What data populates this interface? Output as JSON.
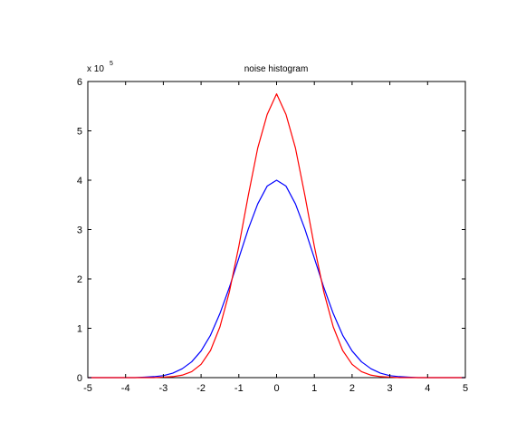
{
  "chart_data": {
    "type": "line",
    "title": "noise histogram",
    "xlabel": "",
    "ylabel": "",
    "y_scale_multiplier": "x 10",
    "y_scale_exponent": "5",
    "xlim": [
      -5,
      5
    ],
    "ylim": [
      0,
      6
    ],
    "xticks": [
      -5,
      -4,
      -3,
      -2,
      -1,
      0,
      1,
      2,
      3,
      4,
      5
    ],
    "yticks": [
      0,
      1,
      2,
      3,
      4,
      5,
      6
    ],
    "xtick_labels": [
      "-5",
      "-4",
      "-3",
      "-2",
      "-1",
      "0",
      "1",
      "2",
      "3",
      "4",
      "5"
    ],
    "ytick_labels": [
      "0",
      "1",
      "2",
      "3",
      "4",
      "5",
      "6"
    ],
    "grid": false,
    "legend": "none",
    "series": [
      {
        "color": "#0000ff",
        "x": [
          -5.0,
          -4.75,
          -4.5,
          -4.25,
          -4.0,
          -3.75,
          -3.5,
          -3.25,
          -3.0,
          -2.75,
          -2.5,
          -2.25,
          -2.0,
          -1.75,
          -1.5,
          -1.25,
          -1.0,
          -0.75,
          -0.5,
          -0.25,
          0.0,
          0.25,
          0.5,
          0.75,
          1.0,
          1.25,
          1.5,
          1.75,
          2.0,
          2.25,
          2.5,
          2.75,
          3.0,
          3.25,
          3.5,
          3.75,
          4.0,
          4.25,
          4.5,
          4.75,
          5.0
        ],
        "y": [
          0.0,
          0.0,
          0.0,
          0.0,
          0.0,
          0.0,
          0.01,
          0.02,
          0.04,
          0.09,
          0.18,
          0.32,
          0.54,
          0.86,
          1.3,
          1.83,
          2.42,
          3.01,
          3.52,
          3.88,
          4.0,
          3.88,
          3.52,
          3.01,
          2.42,
          1.83,
          1.3,
          0.86,
          0.54,
          0.32,
          0.18,
          0.09,
          0.04,
          0.02,
          0.01,
          0.0,
          0.0,
          0.0,
          0.0,
          0.0,
          0.0
        ]
      },
      {
        "color": "#ff0000",
        "x": [
          -5.0,
          -4.75,
          -4.5,
          -4.25,
          -4.0,
          -3.75,
          -3.5,
          -3.25,
          -3.0,
          -2.75,
          -2.5,
          -2.25,
          -2.0,
          -1.75,
          -1.5,
          -1.25,
          -1.0,
          -0.75,
          -0.5,
          -0.25,
          0.0,
          0.25,
          0.5,
          0.75,
          1.0,
          1.25,
          1.5,
          1.75,
          2.0,
          2.25,
          2.5,
          2.75,
          3.0,
          3.25,
          3.5,
          3.75,
          4.0,
          4.25,
          4.5,
          4.75,
          5.0
        ],
        "y": [
          0.0,
          0.0,
          0.0,
          0.0,
          0.0,
          0.0,
          0.0,
          0.0,
          0.01,
          0.02,
          0.05,
          0.12,
          0.27,
          0.55,
          1.03,
          1.74,
          2.66,
          3.69,
          4.65,
          5.33,
          5.75,
          5.33,
          4.65,
          3.69,
          2.66,
          1.74,
          1.03,
          0.55,
          0.27,
          0.12,
          0.05,
          0.02,
          0.01,
          0.0,
          0.0,
          0.0,
          0.0,
          0.0,
          0.0,
          0.0,
          0.0
        ]
      }
    ]
  }
}
